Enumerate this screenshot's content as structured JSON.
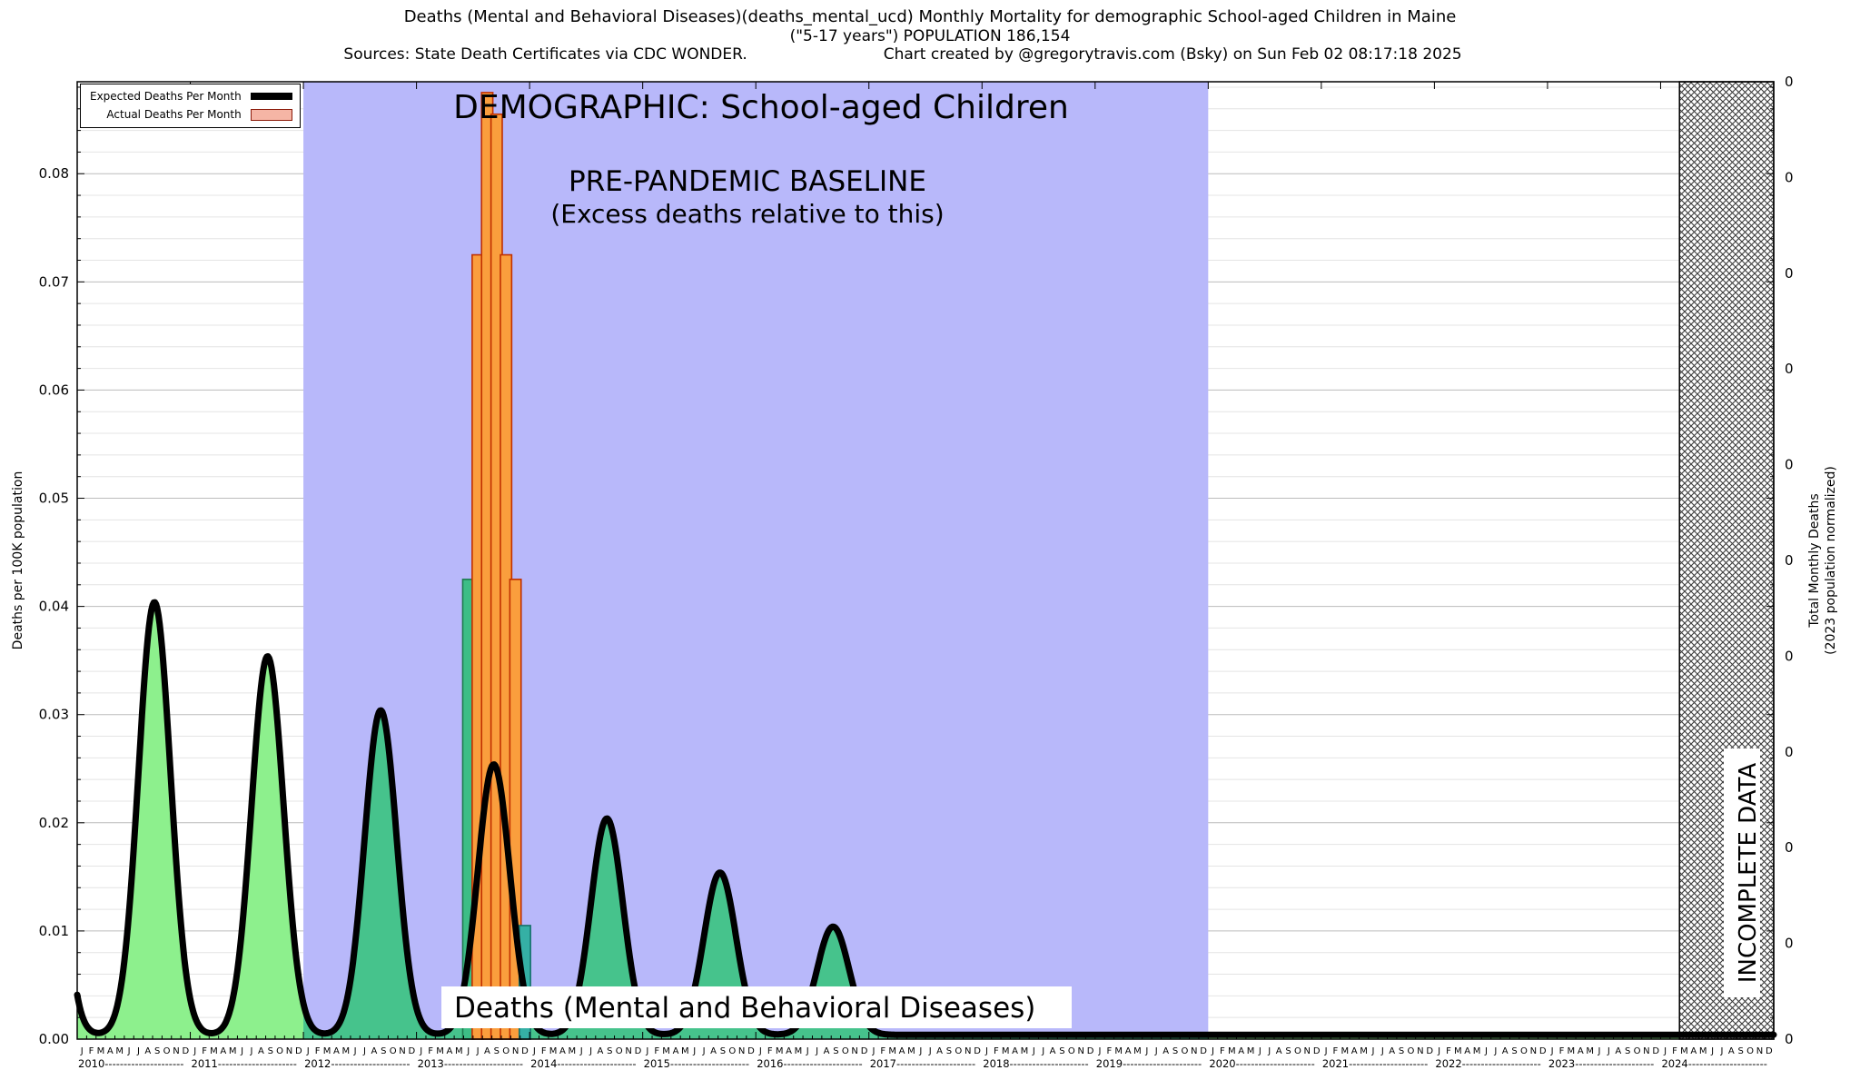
{
  "header": {
    "title_line1": "Deaths (Mental and Behavioral Diseases)(deaths_mental_ucd) Monthly Mortality for demographic School-aged Children in Maine",
    "title_line2": "(\"5-17 years\") POPULATION 186,154",
    "sources": "Sources: State Death Certificates via CDC WONDER.",
    "credit": "Chart created by @gregorytravis.com (Bsky) on Sun Feb 02 08:17:18 2025"
  },
  "legend": {
    "expected_label": "Expected Deaths Per Month",
    "actual_label": "Actual Deaths Per Month",
    "expected_color": "#000000",
    "actual_color": "#f5b5a5"
  },
  "annotations": {
    "demographic": "DEMOGRAPHIC: School-aged Children",
    "baseline_line1": "PRE-PANDEMIC BASELINE",
    "baseline_line2": "(Excess deaths relative to this)",
    "bottom_label": "Deaths (Mental and Behavioral Diseases)",
    "incomplete": "INCOMPLETE DATA"
  },
  "axes": {
    "ylabel_left": "Deaths per 100K population",
    "ylabel_right_line1": "Total Monthly Deaths",
    "ylabel_right_line2": "(2023 population normalized)",
    "y_ticks_left": [
      "0.00",
      "0.01",
      "0.02",
      "0.03",
      "0.04",
      "0.05",
      "0.06",
      "0.07",
      "0.08"
    ],
    "y_ticks_right": [
      "0",
      "0",
      "0",
      "0",
      "0",
      "0",
      "0",
      "0",
      "0",
      "0",
      "0"
    ],
    "years": [
      2010,
      2011,
      2012,
      2013,
      2014,
      2015,
      2016,
      2017,
      2018,
      2019,
      2020,
      2021,
      2022,
      2023,
      2024
    ],
    "month_letters": [
      "J",
      "F",
      "M",
      "A",
      "M",
      "J",
      "J",
      "A",
      "S",
      "O",
      "N",
      "D"
    ]
  },
  "chart_data": {
    "type": "line+bar",
    "title": "Deaths (Mental and Behavioral Diseases) Monthly Mortality, School-aged Children, Maine",
    "xlabel": "",
    "ylabel": "Deaths per 100K population",
    "x_range_months": [
      "2010-01",
      "2024-12"
    ],
    "y_axis": {
      "min": 0,
      "max": 0.0885,
      "major_step": 0.01,
      "minor_step": 0.002
    },
    "grid": "horizontal-minor",
    "legend_position": "top-left",
    "baseline_region": {
      "label": "PRE-PANDEMIC BASELINE (Excess deaths relative to this)",
      "start": "2012-01",
      "end": "2020-01",
      "color": "#b8b8fa"
    },
    "incomplete_region": {
      "label": "INCOMPLETE DATA",
      "start": "2024-03",
      "end": "2024-12",
      "style": "crosshatch"
    },
    "expected_series": {
      "name": "Expected Deaths Per Month",
      "color": "#000000",
      "baseline_value": 0.0004,
      "seasonal_peak_month": 9,
      "sigma_months": 1.7,
      "annual_peaks": [
        {
          "year": 2009,
          "value": 0.045
        },
        {
          "year": 2010,
          "value": 0.04
        },
        {
          "year": 2011,
          "value": 0.035
        },
        {
          "year": 2012,
          "value": 0.03
        },
        {
          "year": 2013,
          "value": 0.025
        },
        {
          "year": 2014,
          "value": 0.02
        },
        {
          "year": 2015,
          "value": 0.015
        },
        {
          "year": 2016,
          "value": 0.01
        },
        {
          "year": 2017,
          "value": 0.0
        },
        {
          "year": 2018,
          "value": 0.0
        },
        {
          "year": 2019,
          "value": 0.0
        },
        {
          "year": 2020,
          "value": 0.0
        },
        {
          "year": 2021,
          "value": 0.0
        },
        {
          "year": 2022,
          "value": 0.0
        },
        {
          "year": 2023,
          "value": 0.0
        },
        {
          "year": 2024,
          "value": 0.0
        }
      ],
      "fill_color_outside_baseline": "#8df08d",
      "fill_color_inside_baseline": "#46c38c"
    },
    "expected_monthly_bars": {
      "color": "#ffff55",
      "edge": "#111111",
      "bars": [
        {
          "month": "2013-07",
          "value": 0.0195
        },
        {
          "month": "2013-08",
          "value": 0.0245
        },
        {
          "month": "2013-09",
          "value": 0.0245
        },
        {
          "month": "2013-10",
          "value": 0.0195
        },
        {
          "month": "2013-11",
          "value": 0.011
        }
      ]
    },
    "actual_series": {
      "name": "Actual Deaths Per Month",
      "bars": [
        {
          "month": "2013-06",
          "value": 0.0425,
          "color": "#3dbd86",
          "edge": "#1e7a50"
        },
        {
          "month": "2013-07",
          "value": 0.0725,
          "color": "#fa9e3d",
          "edge": "#c03000"
        },
        {
          "month": "2013-08",
          "value": 0.0875,
          "color": "#fa9e3d",
          "edge": "#c03000"
        },
        {
          "month": "2013-09",
          "value": 0.0855,
          "color": "#fa9e3d",
          "edge": "#c03000"
        },
        {
          "month": "2013-10",
          "value": 0.0725,
          "color": "#fa9e3d",
          "edge": "#c03000"
        },
        {
          "month": "2013-11",
          "value": 0.0425,
          "color": "#fa9e3d",
          "edge": "#c03000"
        },
        {
          "month": "2013-12",
          "value": 0.0105,
          "color": "#35b0a5",
          "edge": "#17706a"
        }
      ]
    }
  }
}
